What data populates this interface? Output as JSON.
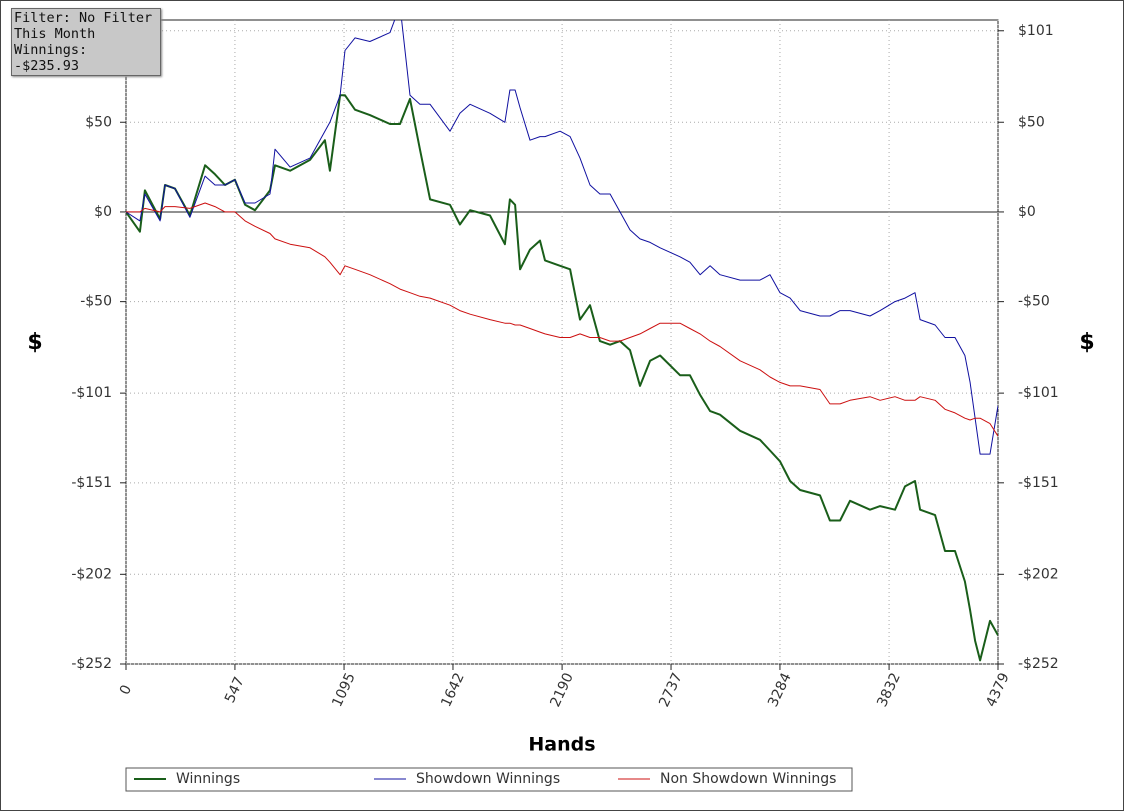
{
  "info": {
    "filter": "Filter: No Filter",
    "period": "This Month",
    "winnings": "Winnings: -$235.93"
  },
  "chart_data": {
    "type": "line",
    "xlabel": "Hands",
    "ylabel": "$",
    "y2label": "$",
    "xlim": [
      0,
      4379
    ],
    "xticks": [
      0,
      547,
      1095,
      1642,
      2190,
      2737,
      3284,
      3832,
      4379
    ],
    "ylim": [
      -252,
      107
    ],
    "yticks": [
      {
        "value": 101,
        "label": "$101"
      },
      {
        "value": 50,
        "label": "$50"
      },
      {
        "value": 0,
        "label": "$0"
      },
      {
        "value": -50,
        "label": "-$50"
      },
      {
        "value": -101,
        "label": "-$101"
      },
      {
        "value": -151,
        "label": "-$151"
      },
      {
        "value": -202,
        "label": "-$202"
      },
      {
        "value": -252,
        "label": "-$252"
      }
    ],
    "grid": true,
    "x": [
      0,
      70,
      95,
      171,
      196,
      246,
      321,
      397,
      447,
      497,
      547,
      598,
      648,
      723,
      748,
      824,
      924,
      999,
      1024,
      1075,
      1100,
      1150,
      1225,
      1326,
      1376,
      1426,
      1476,
      1527,
      1627,
      1677,
      1728,
      1828,
      1903,
      1928,
      1954,
      1979,
      2029,
      2079,
      2104,
      2180,
      2230,
      2280,
      2330,
      2380,
      2431,
      2481,
      2531,
      2581,
      2632,
      2682,
      2782,
      2832,
      2883,
      2933,
      2983,
      3084,
      3184,
      3234,
      3284,
      3335,
      3385,
      3485,
      3535,
      3586,
      3636,
      3736,
      3787,
      3862,
      3912,
      3962,
      3988,
      4063,
      4113,
      4163,
      4213,
      4239,
      4264,
      4289,
      4339,
      4379
    ],
    "series": [
      {
        "name": "Winnings",
        "color": "#1a5e1a",
        "values": [
          0,
          -11,
          12,
          -4,
          15,
          13,
          -2,
          26,
          21,
          15,
          18,
          4,
          1,
          12,
          26,
          23,
          29,
          40,
          23,
          65,
          65,
          57,
          54,
          49,
          49,
          63,
          35,
          7,
          4,
          -7,
          1,
          -2,
          -18,
          7,
          4,
          -32,
          -21,
          -16,
          -27,
          -30,
          -32,
          -60,
          -52,
          -72,
          -74,
          -72,
          -77,
          -97,
          -83,
          -80,
          -91,
          -91,
          -102,
          -111,
          -113,
          -122,
          -127,
          -133,
          -139,
          -150,
          -155,
          -158,
          -172,
          -172,
          -161,
          -166,
          -164,
          -166,
          -153,
          -150,
          -166,
          -169,
          -189,
          -189,
          -206,
          -222,
          -239,
          -250,
          -228,
          -236
        ]
      },
      {
        "name": "Showdown Winnings",
        "color": "#1010a0",
        "values": [
          0,
          -5,
          10,
          -5,
          15,
          13,
          -3,
          20,
          15,
          15,
          18,
          5,
          5,
          10,
          35,
          25,
          30,
          45,
          50,
          65,
          90,
          97,
          95,
          100,
          115,
          65,
          60,
          60,
          45,
          55,
          60,
          55,
          50,
          68,
          68,
          58,
          40,
          42,
          42,
          45,
          42,
          30,
          15,
          10,
          10,
          0,
          -10,
          -15,
          -17,
          -20,
          -25,
          -28,
          -35,
          -30,
          -35,
          -38,
          -38,
          -35,
          -45,
          -48,
          -55,
          -58,
          -58,
          -55,
          -55,
          -58,
          -55,
          -50,
          -48,
          -45,
          -60,
          -63,
          -70,
          -70,
          -80,
          -95,
          -115,
          -135,
          -135,
          -108
        ]
      },
      {
        "name": "Non Showdown Winnings",
        "color": "#cc1010",
        "values": [
          0,
          0,
          2,
          0,
          3,
          3,
          2,
          5,
          3,
          0,
          0,
          -5,
          -8,
          -12,
          -15,
          -18,
          -20,
          -25,
          -28,
          -35,
          -30,
          -32,
          -35,
          -40,
          -43,
          -45,
          -47,
          -48,
          -52,
          -55,
          -57,
          -60,
          -62,
          -62,
          -63,
          -63,
          -65,
          -67,
          -68,
          -70,
          -70,
          -68,
          -70,
          -70,
          -72,
          -72,
          -70,
          -68,
          -65,
          -62,
          -62,
          -65,
          -68,
          -72,
          -75,
          -83,
          -88,
          -92,
          -95,
          -97,
          -97,
          -99,
          -107,
          -107,
          -105,
          -103,
          -105,
          -103,
          -105,
          -105,
          -103,
          -105,
          -110,
          -112,
          -115,
          -116,
          -115,
          -115,
          -118,
          -125
        ]
      }
    ]
  }
}
